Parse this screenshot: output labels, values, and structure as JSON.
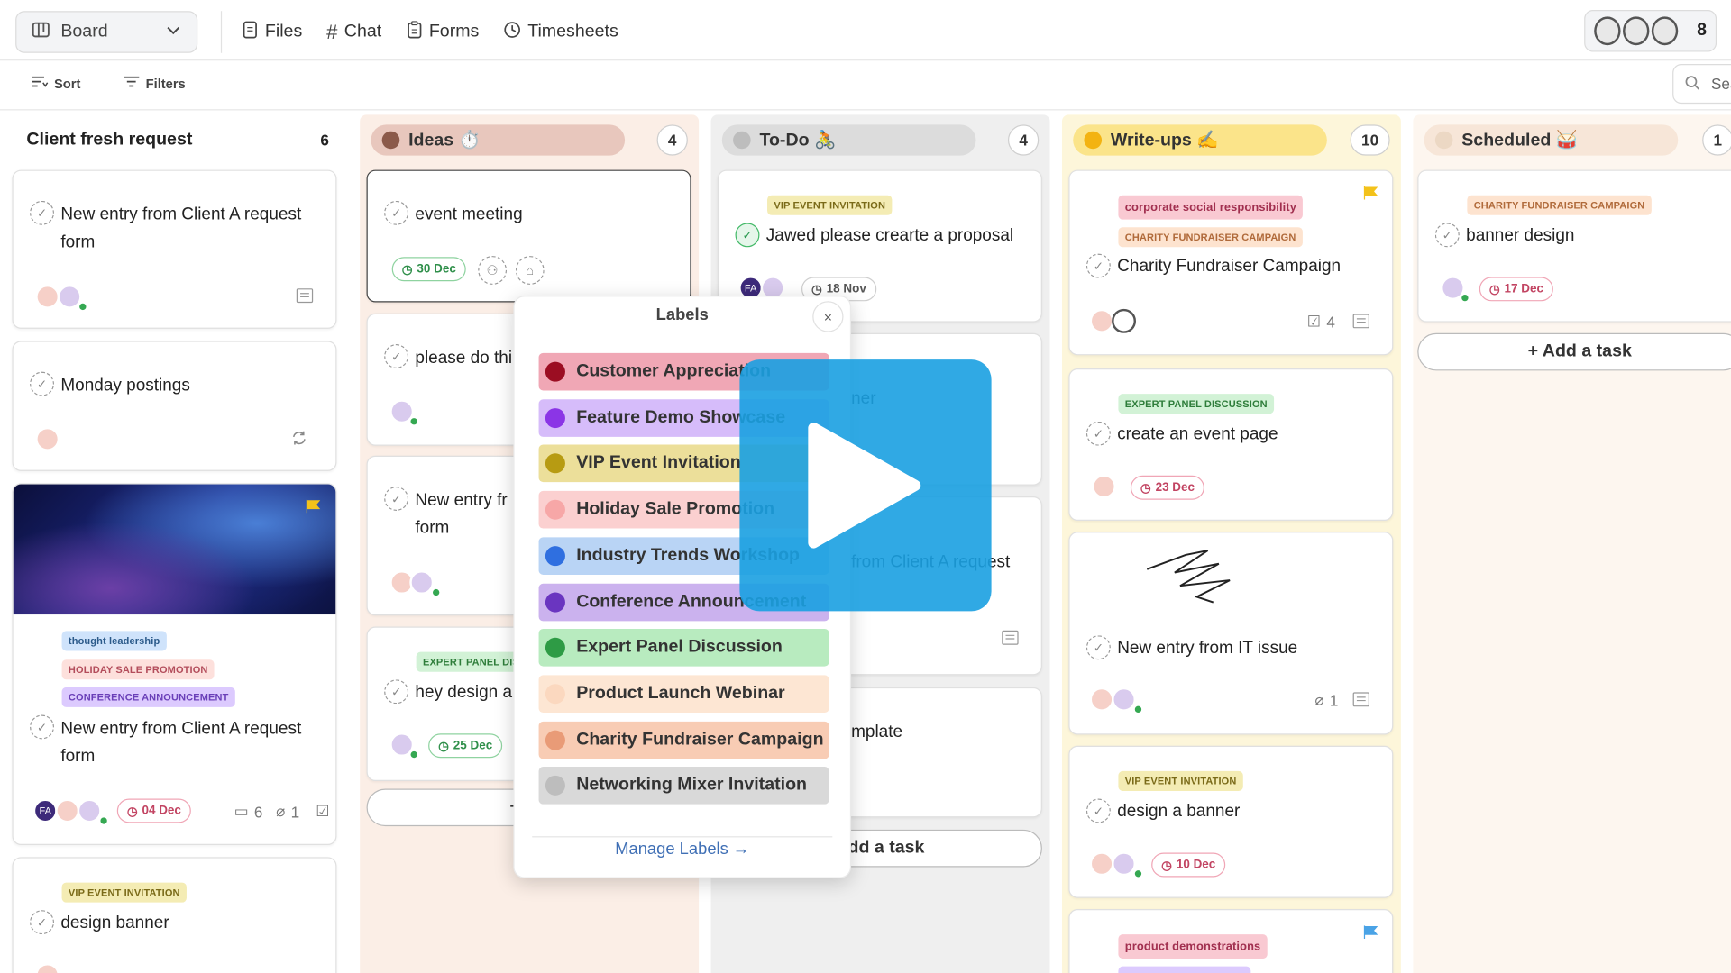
{
  "topbar": {
    "view_label": "Board",
    "nav": [
      "Files",
      "Chat",
      "Forms",
      "Timesheets"
    ],
    "member_count": "8"
  },
  "toolbar": {
    "sort_label": "Sort",
    "filters_label": "Filters",
    "search_placeholder": "Sea"
  },
  "columns": [
    {
      "title": "Client fresh request",
      "count": "6",
      "cards": [
        {
          "title": "New entry from Client A request form"
        },
        {
          "title": "Monday postings"
        },
        {
          "title": "New entry from Client A request form",
          "tags": [
            "thought leadership",
            "HOLIDAY SALE PROMOTION",
            "CONFERENCE ANNOUNCEMENT"
          ],
          "date": "04 Dec",
          "comments": "6",
          "attachments": "1"
        },
        {
          "title": "design banner",
          "tags": [
            "VIP EVENT INVITATION"
          ]
        }
      ]
    },
    {
      "title": "Ideas ⏱️",
      "count": "4",
      "cards": [
        {
          "title": "event meeting",
          "date": "30 Dec"
        },
        {
          "title": "please do thi"
        },
        {
          "title": "New entry fr form"
        },
        {
          "title": "hey design a",
          "tags": [
            "EXPERT PANEL DISCU"
          ],
          "date": "25 Dec"
        }
      ],
      "add_label": "+ Ad"
    },
    {
      "title": "To-Do 🚴",
      "count": "4",
      "cards": [
        {
          "title": "Jawed please crearte a proposal",
          "tags": [
            "VIP EVENT INVITATION"
          ],
          "date": "18 Nov"
        },
        {
          "title": "ner"
        },
        {
          "title": "from Client A request"
        },
        {
          "title": "mplate"
        }
      ],
      "add_label": "Add a task"
    },
    {
      "title": "Write-ups ✍️",
      "count": "10",
      "cards": [
        {
          "title": "Charity Fundraiser Campaign",
          "tags": [
            "corporate social responsibility",
            "CHARITY FUNDRAISER CAMPAIGN"
          ],
          "checklist": "4"
        },
        {
          "title": "create an event page",
          "tags": [
            "EXPERT PANEL DISCUSSION"
          ],
          "date": "23 Dec"
        },
        {
          "title": "New entry from IT issue",
          "attachments": "1"
        },
        {
          "title": "design a banner",
          "tags": [
            "VIP EVENT INVITATION"
          ],
          "date": "10 Dec"
        },
        {
          "title": "",
          "tags": [
            "product demonstrations"
          ]
        }
      ]
    },
    {
      "title": "Scheduled 🥁",
      "count": "1",
      "cards": [
        {
          "title": "banner design",
          "tags": [
            "CHARITY FUNDRAISER CAMPAIGN"
          ],
          "date": "17 Dec"
        }
      ],
      "add_label": "+ Add a task"
    }
  ],
  "labels_popover": {
    "title": "Labels",
    "close": "×",
    "labels": [
      {
        "name": "Customer Appreciation",
        "color": "#9b0d22",
        "bg": "#f0a7b5"
      },
      {
        "name": "Feature Demo Showcase",
        "color": "#8b35e6",
        "bg": "#d6bcfa"
      },
      {
        "name": "VIP Event Invitation",
        "color": "#b79b12",
        "bg": "#ecdf9a"
      },
      {
        "name": "Holiday Sale Promotion",
        "color": "#f7a7a7",
        "bg": "#fbd0d0"
      },
      {
        "name": "Industry Trends Workshop",
        "color": "#2f6fe0",
        "bg": "#b9d4f5"
      },
      {
        "name": "Conference Announcement",
        "color": "#6a35c0",
        "bg": "#cbb2ee"
      },
      {
        "name": "Expert Panel Discussion",
        "color": "#2e9b45",
        "bg": "#b8ebbf"
      },
      {
        "name": "Product Launch Webinar",
        "color": "#fbd8bf",
        "bg": "#fde6d3"
      },
      {
        "name": "Charity Fundraiser Campaign",
        "color": "#e99b77",
        "bg": "#f8ccb4"
      },
      {
        "name": "Networking Mixer Invitation",
        "color": "#bdbdbd",
        "bg": "#d9d9d9"
      }
    ],
    "manage_label": "Manage Labels"
  },
  "colors": {
    "accent": "#1aa0e1",
    "ideas_bg": "#fbeee6",
    "todo_bg": "#efefef",
    "writeups_bg": "#fdf6da",
    "scheduled_bg": "#fdf6ef"
  }
}
